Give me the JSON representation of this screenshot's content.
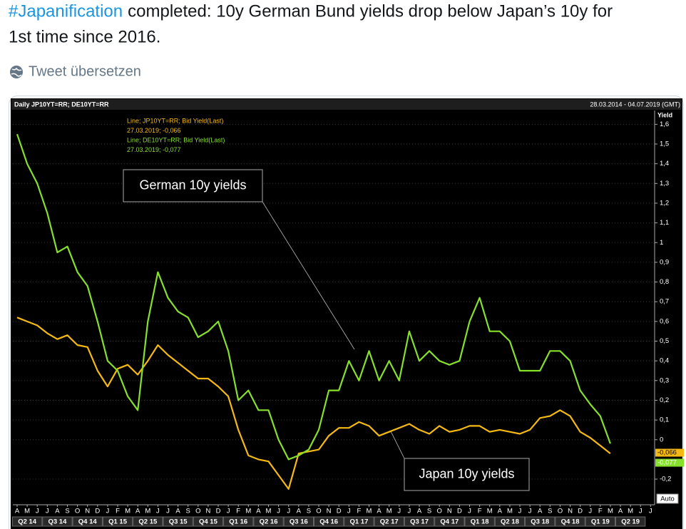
{
  "tweet": {
    "hashtag": "#Japanification",
    "text_line1": "completed: 10y German Bund yields drop below Japan’s 10y for",
    "text_line2": "1st time since 2016.",
    "translate": "Tweet übersetzen"
  },
  "chart_data": {
    "type": "line",
    "title": "Daily JP10YT=RR; DE10YT=RR",
    "date_range": "28.03.2014 - 04.07.2019 (GMT)",
    "ylabel": "Yield",
    "legend_lines": [
      "Line; JP10YT=RR; Bid Yield(Last)",
      "27.03.2019; -0,066",
      "Line; DE10YT=RR; Bid Yield(Last)",
      "27.03.2019; -0,077"
    ],
    "annotations": [
      "German 10y yields",
      "Japan 10y yields"
    ],
    "scale_button": "Auto",
    "categories": [
      "A",
      "M",
      "J",
      "J",
      "A",
      "S",
      "O",
      "N",
      "D",
      "J",
      "F",
      "M",
      "A",
      "M",
      "J",
      "J",
      "A",
      "S",
      "O",
      "N",
      "D",
      "J",
      "F",
      "M",
      "A",
      "M",
      "J",
      "J",
      "A",
      "S",
      "O",
      "N",
      "D",
      "J",
      "F",
      "M",
      "A",
      "M",
      "J",
      "J",
      "A",
      "S",
      "O",
      "N",
      "D",
      "J",
      "F",
      "M",
      "A",
      "M",
      "J",
      "J",
      "A",
      "S",
      "O",
      "N",
      "D",
      "J",
      "F",
      "M",
      "A",
      "M",
      "J",
      "J"
    ],
    "quarters": [
      "Q2 14",
      "Q3 14",
      "Q4 14",
      "Q1 15",
      "Q2 15",
      "Q3 15",
      "Q4 15",
      "Q1 16",
      "Q2 16",
      "Q3 16",
      "Q4 16",
      "Q1 17",
      "Q2 17",
      "Q3 17",
      "Q4 17",
      "Q1 18",
      "Q2 18",
      "Q3 18",
      "Q4 18",
      "Q1 19",
      "Q2 19"
    ],
    "series": [
      {
        "name": "JP10YT=RR",
        "color": "#f5b914",
        "last": {
          "value": -0.066,
          "label": "-0,066"
        },
        "values": [
          0.62,
          0.6,
          0.58,
          0.54,
          0.51,
          0.53,
          0.48,
          0.47,
          0.35,
          0.27,
          0.36,
          0.38,
          0.33,
          0.4,
          0.48,
          0.43,
          0.39,
          0.35,
          0.31,
          0.31,
          0.27,
          0.22,
          0.05,
          -0.08,
          -0.1,
          -0.11,
          -0.18,
          -0.25,
          -0.07,
          -0.06,
          -0.05,
          0.02,
          0.06,
          0.06,
          0.09,
          0.07,
          0.02,
          0.04,
          0.06,
          0.08,
          0.05,
          0.03,
          0.07,
          0.04,
          0.05,
          0.07,
          0.07,
          0.04,
          0.05,
          0.04,
          0.03,
          0.05,
          0.11,
          0.12,
          0.15,
          0.12,
          0.04,
          0.01,
          -0.03,
          -0.07,
          null,
          null,
          null,
          null
        ]
      },
      {
        "name": "DE10YT=RR",
        "color": "#86e02c",
        "last": {
          "value": -0.077,
          "label": "-0,077"
        },
        "values": [
          1.55,
          1.4,
          1.3,
          1.15,
          0.95,
          0.98,
          0.85,
          0.78,
          0.6,
          0.4,
          0.35,
          0.22,
          0.15,
          0.6,
          0.85,
          0.72,
          0.65,
          0.62,
          0.52,
          0.55,
          0.6,
          0.45,
          0.2,
          0.25,
          0.15,
          0.15,
          0.0,
          -0.1,
          -0.08,
          -0.05,
          0.05,
          0.25,
          0.25,
          0.4,
          0.3,
          0.45,
          0.3,
          0.4,
          0.3,
          0.55,
          0.4,
          0.45,
          0.4,
          0.38,
          0.4,
          0.6,
          0.72,
          0.55,
          0.55,
          0.5,
          0.35,
          0.35,
          0.35,
          0.45,
          0.45,
          0.4,
          0.25,
          0.18,
          0.12,
          -0.02,
          null,
          null,
          null,
          null
        ]
      }
    ],
    "ylim": [
      -0.33,
      1.67
    ],
    "yticks": [
      {
        "value": 1.6,
        "label": "1,6"
      },
      {
        "value": 1.5,
        "label": "1,5"
      },
      {
        "value": 1.4,
        "label": "1,4"
      },
      {
        "value": 1.3,
        "label": "1,3"
      },
      {
        "value": 1.2,
        "label": "1,2"
      },
      {
        "value": 1.1,
        "label": "1,1"
      },
      1,
      {
        "value": 0.9,
        "label": "0,9"
      },
      {
        "value": 0.8,
        "label": "0,8"
      },
      {
        "value": 0.7,
        "label": "0,7"
      },
      {
        "value": 0.6,
        "label": "0,6"
      },
      {
        "value": 0.5,
        "label": "0,5"
      },
      {
        "value": 0.4,
        "label": "0,4"
      },
      {
        "value": 0.3,
        "label": "0,3"
      },
      {
        "value": 0.2,
        "label": "0,2"
      },
      {
        "value": 0.1,
        "label": "0,1"
      },
      0,
      {
        "value": -0.2,
        "label": "-0,2"
      }
    ],
    "grid": true
  }
}
